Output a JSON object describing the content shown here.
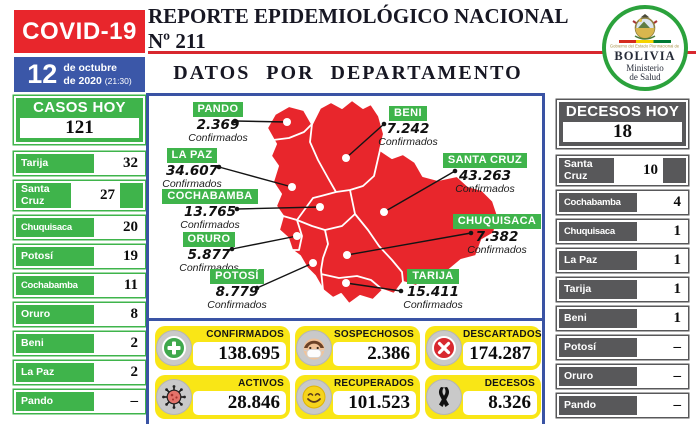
{
  "header": {
    "covid_badge": "COVID-19",
    "title": "REPORTE EPIDEMIOLÓGICO NACIONAL Nº 211",
    "subtitle": "DATOS POR DEPARTAMENTO",
    "date": {
      "day": "12",
      "month": "de octubre",
      "year": "de 2020",
      "time": "(21:30)"
    },
    "logo": {
      "line1": "Gobierno del Estado Plurinacional de",
      "line2": "BOLIVIA",
      "line3": "Ministerio",
      "line4": "de Salud"
    }
  },
  "cases_today": {
    "title": "CASOS HOY",
    "total": "121",
    "rows": [
      {
        "name": "Tarija",
        "value": "32"
      },
      {
        "name": "Santa Cruz",
        "value": "27"
      },
      {
        "name": "Chuquisaca",
        "value": "20"
      },
      {
        "name": "Potosí",
        "value": "19"
      },
      {
        "name": "Cochabamba",
        "value": "11"
      },
      {
        "name": "Oruro",
        "value": "8"
      },
      {
        "name": "Beni",
        "value": "2"
      },
      {
        "name": "La Paz",
        "value": "2"
      },
      {
        "name": "Pando",
        "value": "–"
      }
    ]
  },
  "deaths_today": {
    "title": "DECESOS HOY",
    "total": "18",
    "rows": [
      {
        "name": "Santa Cruz",
        "value": "10"
      },
      {
        "name": "Cochabamba",
        "value": "4"
      },
      {
        "name": "Chuquisaca",
        "value": "1"
      },
      {
        "name": "La Paz",
        "value": "1"
      },
      {
        "name": "Tarija",
        "value": "1"
      },
      {
        "name": "Beni",
        "value": "1"
      },
      {
        "name": "Potosí",
        "value": "–"
      },
      {
        "name": "Oruro",
        "value": "–"
      },
      {
        "name": "Pando",
        "value": "–"
      }
    ]
  },
  "map": {
    "sublabel": "Confirmados",
    "departments": {
      "pando": {
        "name": "PANDO",
        "value": "2.369"
      },
      "la_paz": {
        "name": "LA PAZ",
        "value": "34.607"
      },
      "cochabamba": {
        "name": "COCHABAMBA",
        "value": "13.765"
      },
      "oruro": {
        "name": "ORURO",
        "value": "5.877"
      },
      "potosi": {
        "name": "POTOSÍ",
        "value": "8.779"
      },
      "beni": {
        "name": "BENI",
        "value": "7.242"
      },
      "santa_cruz": {
        "name": "SANTA CRUZ",
        "value": "43.263"
      },
      "chuquisaca": {
        "name": "CHUQUISACA",
        "value": "7.382"
      },
      "tarija": {
        "name": "TARIJA",
        "value": "15.411"
      }
    }
  },
  "stats": [
    {
      "label": "CONFIRMADOS",
      "value": "138.695",
      "icon": "plus-circle"
    },
    {
      "label": "SOSPECHOSOS",
      "value": "2.386",
      "icon": "masked-face"
    },
    {
      "label": "DESCARTADOS",
      "value": "174.287",
      "icon": "x-circle"
    },
    {
      "label": "ACTIVOS",
      "value": "28.846",
      "icon": "virus"
    },
    {
      "label": "RECUPERADOS",
      "value": "101.523",
      "icon": "smiley"
    },
    {
      "label": "DECESOS",
      "value": "8.326",
      "icon": "mourning-ribbon"
    }
  ],
  "colors": {
    "red": "#e8262c",
    "blue": "#3b57a8",
    "green": "#3fb44b",
    "yellow": "#f9e616",
    "gray": "#58585a"
  },
  "chart_data": [
    {
      "type": "table",
      "title": "CASOS HOY",
      "total": 121,
      "categories": [
        "Tarija",
        "Santa Cruz",
        "Chuquisaca",
        "Potosí",
        "Cochabamba",
        "Oruro",
        "Beni",
        "La Paz",
        "Pando"
      ],
      "values": [
        32,
        27,
        20,
        19,
        11,
        8,
        2,
        2,
        null
      ]
    },
    {
      "type": "table",
      "title": "DECESOS HOY",
      "total": 18,
      "categories": [
        "Santa Cruz",
        "Cochabamba",
        "Chuquisaca",
        "La Paz",
        "Tarija",
        "Beni",
        "Potosí",
        "Oruro",
        "Pando"
      ],
      "values": [
        10,
        4,
        1,
        1,
        1,
        1,
        null,
        null,
        null
      ]
    },
    {
      "type": "table",
      "title": "Confirmados por departamento (mapa)",
      "categories": [
        "Pando",
        "Beni",
        "La Paz",
        "Santa Cruz",
        "Cochabamba",
        "Oruro",
        "Chuquisaca",
        "Potosí",
        "Tarija"
      ],
      "values": [
        2369,
        7242,
        34607,
        43263,
        13765,
        5877,
        7382,
        8779,
        15411
      ]
    },
    {
      "type": "table",
      "title": "Totales nacionales",
      "categories": [
        "Confirmados",
        "Sospechosos",
        "Descartados",
        "Activos",
        "Recuperados",
        "Decesos"
      ],
      "values": [
        138695,
        2386,
        174287,
        28846,
        101523,
        8326
      ]
    }
  ]
}
